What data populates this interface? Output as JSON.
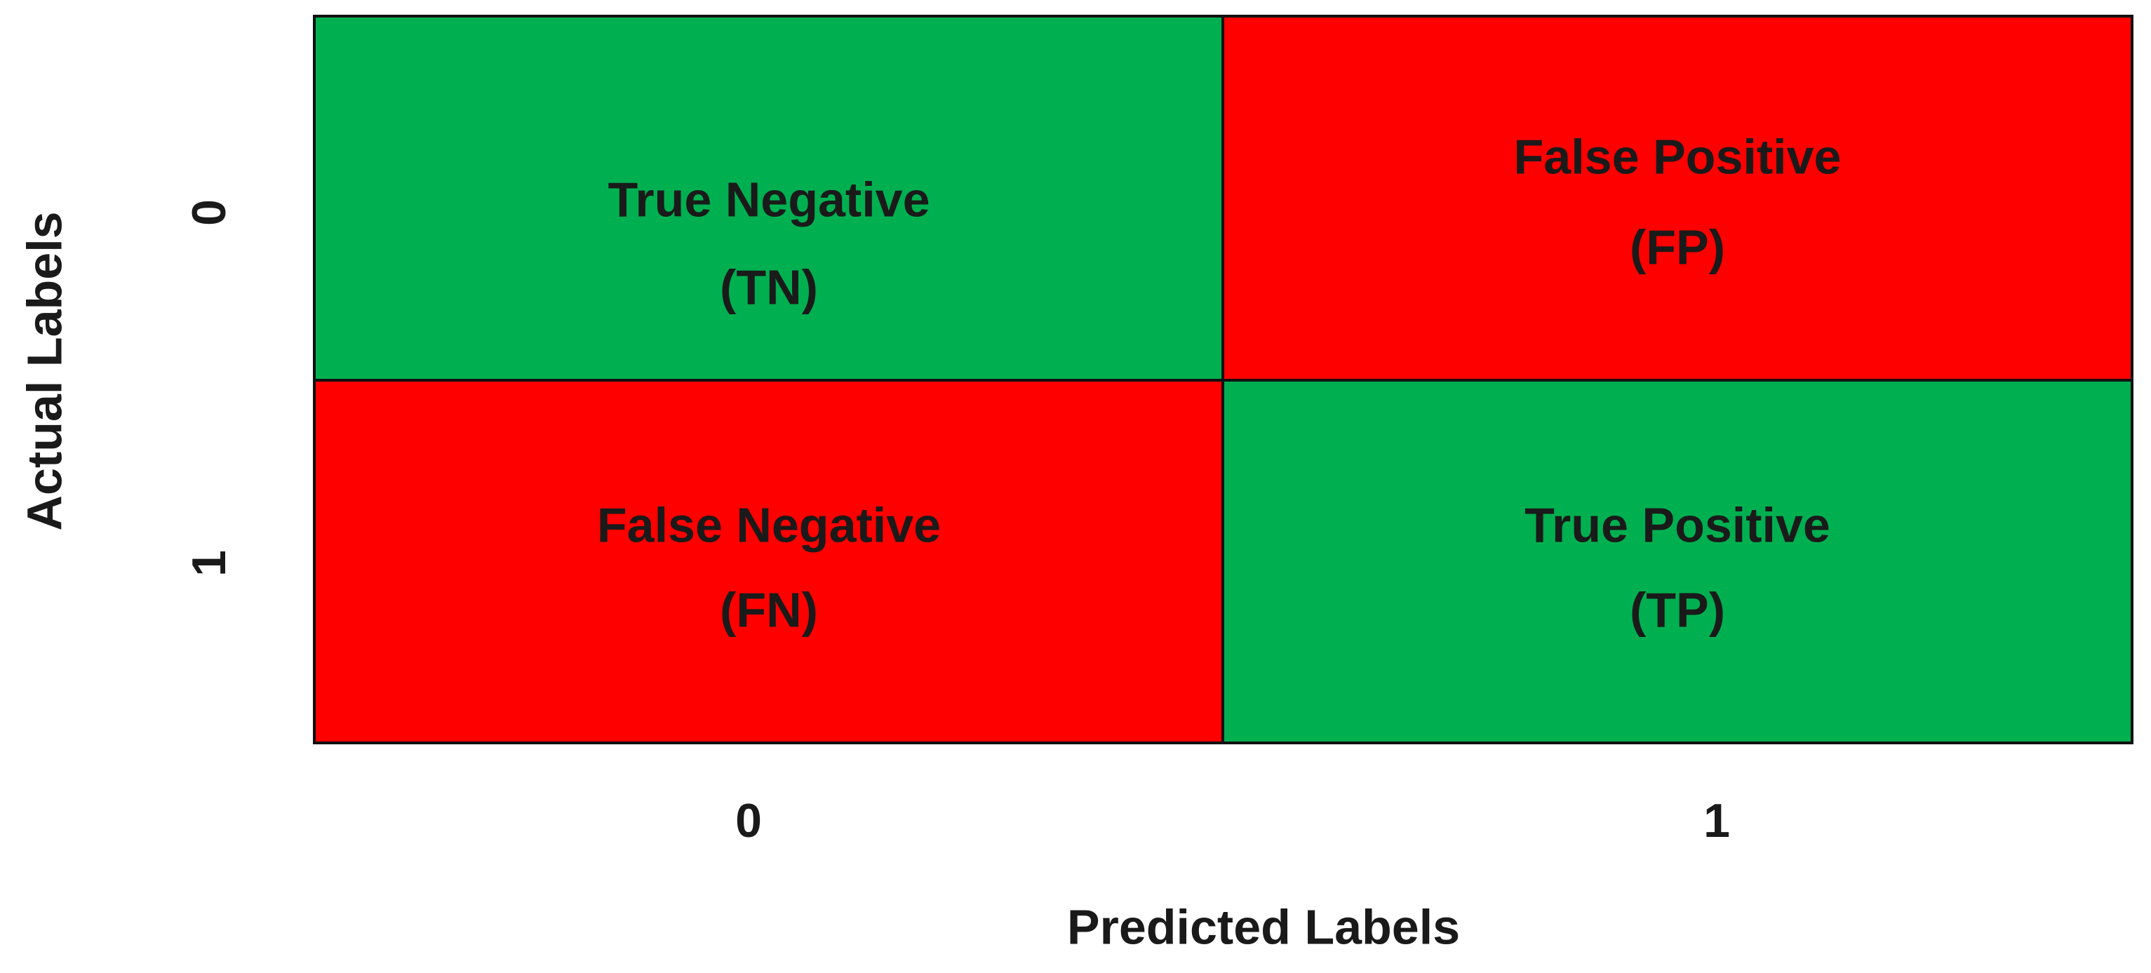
{
  "x_axis": {
    "label": "Predicted Labels",
    "ticks": [
      "0",
      "1"
    ]
  },
  "y_axis": {
    "label": "Actual Labels",
    "ticks": [
      "0",
      "1"
    ]
  },
  "cells": [
    [
      [
        "True Negative",
        "(TN)"
      ],
      [
        "False Positive",
        "(FP)"
      ]
    ],
    [
      [
        "False Negative",
        "(FN)"
      ],
      [
        "True Positive",
        "(TP)"
      ]
    ]
  ]
}
